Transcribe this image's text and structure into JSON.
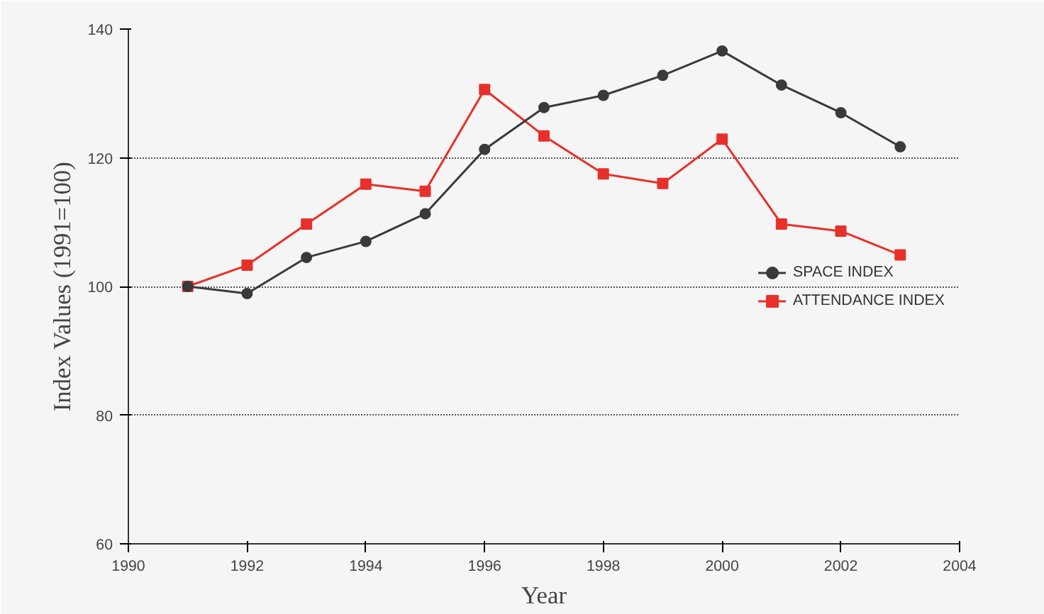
{
  "chart_data": {
    "type": "line",
    "xlabel": "Year",
    "ylabel": "Index Values (1991=100)",
    "x": [
      1991,
      1992,
      1993,
      1994,
      1995,
      1996,
      1997,
      1998,
      1999,
      2000,
      2001,
      2002,
      2003
    ],
    "series": [
      {
        "name": "SPACE INDEX",
        "color": "#3a3a3a",
        "marker": "circle",
        "values": [
          100,
          98.9,
          104.5,
          107,
          111.3,
          121.3,
          127.8,
          129.7,
          132.8,
          136.6,
          131.3,
          127,
          121.7
        ]
      },
      {
        "name": "ATTENDANCE INDEX",
        "color": "#e8302a",
        "marker": "square",
        "values": [
          100,
          103.3,
          109.7,
          115.9,
          114.8,
          130.6,
          123.4,
          117.5,
          116,
          122.9,
          109.7,
          108.6,
          104.9
        ]
      }
    ],
    "xlim": [
      1990,
      2004
    ],
    "xticks": [
      1990,
      1992,
      1994,
      1996,
      1998,
      2000,
      2002,
      2004
    ],
    "ylim": [
      60,
      140
    ],
    "yticks": [
      60,
      80,
      100,
      120,
      140
    ],
    "grid": "y",
    "legend": "right",
    "line_style": "solid"
  }
}
